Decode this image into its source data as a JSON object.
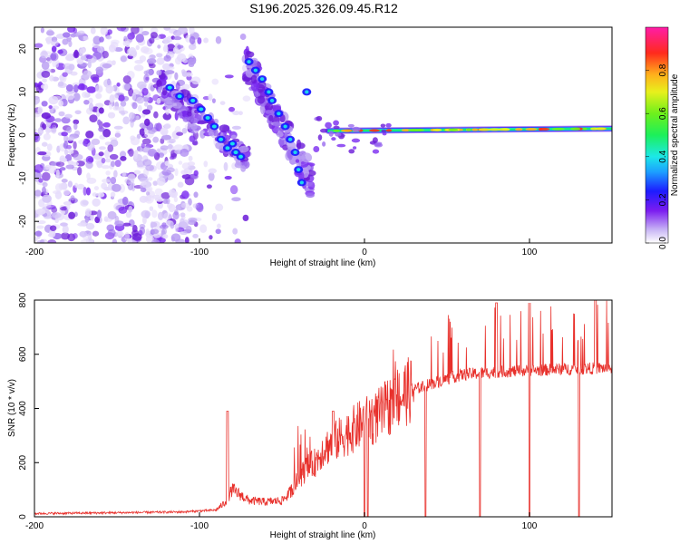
{
  "title": "S196.2025.326.09.45.R12",
  "chart_data": [
    {
      "type": "heatmap",
      "xlabel": "Height of straight line (km)",
      "ylabel": "Frequency (Hz)",
      "xlim": [
        -200,
        150
      ],
      "ylim": [
        -25,
        25
      ],
      "xticks": [
        -200,
        -100,
        0,
        100
      ],
      "yticks": [
        -20,
        -10,
        0,
        10,
        20
      ],
      "colorbar": {
        "label": "Normalized spectral amplitude",
        "range": [
          0.0,
          1.0
        ],
        "ticks": [
          "0.0",
          "0.2",
          "0.4",
          "0.6",
          "0.8"
        ]
      },
      "features": [
        {
          "name": "noise-scatter",
          "x": [
            -200,
            -100
          ],
          "y": [
            -25,
            25
          ]
        },
        {
          "name": "descending-streak-1",
          "x": [
            -120,
            -70
          ],
          "y": [
            12,
            -6
          ]
        },
        {
          "name": "descending-streak-2",
          "x": [
            -72,
            -33
          ],
          "y": [
            18,
            -12
          ]
        },
        {
          "name": "carrier-line",
          "x": [
            -20,
            150
          ],
          "y": [
            1,
            1.5
          ]
        }
      ]
    },
    {
      "type": "line",
      "xlabel": "Height of straight line (km)",
      "ylabel": "SNR (10 * v/v)",
      "xlim": [
        -200,
        150
      ],
      "ylim": [
        0,
        800
      ],
      "xticks": [
        -200,
        -100,
        0,
        100
      ],
      "yticks": [
        0,
        200,
        400,
        600,
        800
      ],
      "color": "#e8302b",
      "series": {
        "x": [
          -200,
          -150,
          -110,
          -90,
          -85,
          -80,
          -75,
          -70,
          -60,
          -50,
          -45,
          -40,
          -35,
          -30,
          -25,
          -20,
          -15,
          -10,
          -5,
          0,
          5,
          10,
          15,
          20,
          25,
          30,
          35,
          40,
          50,
          60,
          80,
          100,
          120,
          150
        ],
        "values": [
          12,
          15,
          18,
          25,
          50,
          100,
          80,
          60,
          55,
          60,
          90,
          140,
          180,
          200,
          250,
          270,
          290,
          310,
          330,
          350,
          360,
          380,
          410,
          440,
          460,
          470,
          480,
          490,
          510,
          525,
          535,
          540,
          545,
          550
        ]
      },
      "spikes_up": [
        -83,
        -19,
        80,
        100,
        140
      ],
      "spikes_down": [
        0,
        2,
        37,
        70,
        100,
        130
      ]
    }
  ]
}
